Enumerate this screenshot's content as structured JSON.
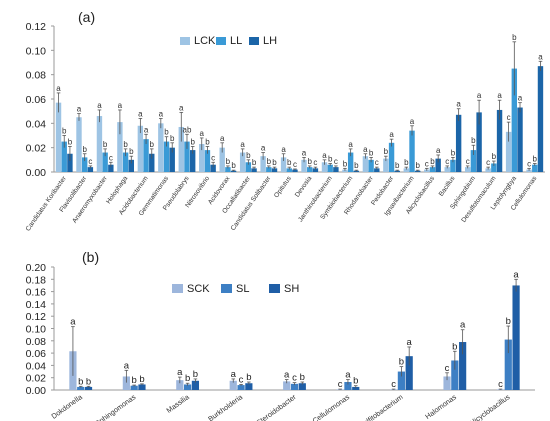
{
  "chart_data": [
    {
      "type": "bar",
      "panel_label": "(a)",
      "ylim": [
        0,
        0.12
      ],
      "yticks": [
        "0.00",
        "0.02",
        "0.04",
        "0.06",
        "0.08",
        "0.10",
        "0.12"
      ],
      "legend": {
        "placement": "top-left"
      },
      "colors": [
        "#9ec4e4",
        "#3a9ad6",
        "#1b65a8"
      ],
      "categories": [
        "Candidatus Koribacter",
        "Flavisolibacter",
        "Anaeromyxobacter",
        "Holophaga",
        "Acidobacterium",
        "Gemmatimonas",
        "Pseudolabrys",
        "Nitrosovibrio",
        "Acidovorax",
        "Occallatibacter",
        "Candidatus Solibacter",
        "Opitutus",
        "Devosia",
        "Janthinobacterium",
        "Symbiobacterium",
        "Rhodanobacter",
        "Pedobacter",
        "Ignavibacterium",
        "Alicyclobacillus",
        "Bacillus",
        "Sphingobium",
        "Desulfotomaculum",
        "Leptolyngbya",
        "Cellulomonas"
      ],
      "series": [
        {
          "name": "LCK",
          "values": [
            0.057,
            0.045,
            0.046,
            0.041,
            0.038,
            0.04,
            0.037,
            0.023,
            0.02,
            0.016,
            0.013,
            0.012,
            0.01,
            0.008,
            0.002,
            0.013,
            0.011,
            0.003,
            0.002,
            0.004,
            0.004,
            0.003,
            0.033,
            0.002
          ]
        },
        {
          "name": "LL",
          "values": [
            0.025,
            0.012,
            0.016,
            0.016,
            0.027,
            0.025,
            0.025,
            0.018,
            0.004,
            0.008,
            0.004,
            0.003,
            0.004,
            0.006,
            0.016,
            0.01,
            0.024,
            0.034,
            0.004,
            0.01,
            0.018,
            0.007,
            0.085,
            0.006
          ]
        },
        {
          "name": "LH",
          "values": [
            0.015,
            0.004,
            0.006,
            0.01,
            0.015,
            0.02,
            0.018,
            0.006,
            0.001,
            0.003,
            0.003,
            0.002,
            0.003,
            0.004,
            0.001,
            0.003,
            0.001,
            0.001,
            0.011,
            0.047,
            0.049,
            0.051,
            0.053,
            0.087
          ]
        }
      ],
      "errors": [
        [
          0.008,
          0.003,
          0.005,
          0.01,
          0.006,
          0.004,
          0.012,
          0.005,
          0.004,
          0.003,
          0.003,
          0.003,
          0.002,
          0.002,
          0.001,
          0.002,
          0.002,
          0.001,
          0.001,
          0.001,
          0.001,
          0.001,
          0.008,
          0.001
        ],
        [
          0.005,
          0.003,
          0.003,
          0.003,
          0.004,
          0.004,
          0.006,
          0.003,
          0.001,
          0.002,
          0.001,
          0.001,
          0.001,
          0.001,
          0.003,
          0.002,
          0.003,
          0.004,
          0.001,
          0.002,
          0.004,
          0.002,
          0.022,
          0.001
        ],
        [
          0.006,
          0.001,
          0.002,
          0.003,
          0.004,
          0.004,
          0.003,
          0.002,
          0.0005,
          0.001,
          0.001,
          0.0005,
          0.001,
          0.001,
          0.0005,
          0.001,
          0.0005,
          0.0005,
          0.003,
          0.005,
          0.01,
          0.008,
          0.004,
          0.004
        ]
      ],
      "letters": [
        [
          "a",
          "b",
          "b"
        ],
        [
          "a",
          "b",
          "c"
        ],
        [
          "a",
          "b",
          "c"
        ],
        [
          "a",
          "b",
          "b"
        ],
        [
          "a",
          "a",
          "b"
        ],
        [
          "a",
          "b",
          "b"
        ],
        [
          "a",
          "ab",
          "b"
        ],
        [
          "a",
          "b",
          "c"
        ],
        [
          "a",
          "b",
          "b"
        ],
        [
          "a",
          "b",
          "b"
        ],
        [
          "a",
          "b",
          "b"
        ],
        [
          "a",
          "b",
          "c"
        ],
        [
          "a",
          "b",
          "c"
        ],
        [
          "a",
          "b",
          "c"
        ],
        [
          "b",
          "a",
          "b"
        ],
        [
          "a",
          "b",
          "c"
        ],
        [
          "b",
          "a",
          "b"
        ],
        [
          "b",
          "a",
          "b"
        ],
        [
          "c",
          "b",
          "a"
        ],
        [
          "c",
          "b",
          "a"
        ],
        [
          "c",
          "b",
          "a"
        ],
        [
          "c",
          "b",
          "a"
        ],
        [
          "c",
          "b",
          "a"
        ],
        [
          "c",
          "b",
          "a"
        ]
      ]
    },
    {
      "type": "bar",
      "panel_label": "(b)",
      "ylim": [
        0,
        0.2
      ],
      "yticks": [
        "0.00",
        "0.02",
        "0.04",
        "0.06",
        "0.08",
        "0.10",
        "0.12",
        "0.14",
        "0.16",
        "0.18",
        "0.20"
      ],
      "legend": {
        "placement": "top-left"
      },
      "colors": [
        "#9db6dc",
        "#3d7fc4",
        "#1f5ea6"
      ],
      "categories": [
        "Dokdonella",
        "Sphingomonas",
        "Massilia",
        "Burkholderia",
        "Steroidobacter",
        "Cellulomonas",
        "Desulfitobacterium",
        "Halomonas",
        "Alicyclobacillus"
      ],
      "series": [
        {
          "name": "SCK",
          "values": [
            0.063,
            0.022,
            0.016,
            0.015,
            0.014,
            0.001,
            0.001,
            0.022,
            0.001
          ]
        },
        {
          "name": "SL",
          "values": [
            0.005,
            0.007,
            0.009,
            0.008,
            0.01,
            0.013,
            0.03,
            0.048,
            0.082
          ]
        },
        {
          "name": "SH",
          "values": [
            0.005,
            0.009,
            0.015,
            0.011,
            0.011,
            0.005,
            0.055,
            0.078,
            0.17
          ]
        }
      ],
      "errors": [
        [
          0.04,
          0.01,
          0.005,
          0.003,
          0.003,
          0.0005,
          0.0005,
          0.006,
          0.0005
        ],
        [
          0.001,
          0.001,
          0.002,
          0.001,
          0.002,
          0.004,
          0.008,
          0.015,
          0.022
        ],
        [
          0.001,
          0.001,
          0.003,
          0.002,
          0.002,
          0.002,
          0.015,
          0.02,
          0.01
        ]
      ],
      "letters": [
        [
          "a",
          "b",
          "b"
        ],
        [
          "a",
          "b",
          "b"
        ],
        [
          "a",
          "b",
          "b"
        ],
        [
          "a",
          "c",
          "b"
        ],
        [
          "a",
          "c",
          "b"
        ],
        [
          "c",
          "a",
          "b"
        ],
        [
          "c",
          "b",
          "a"
        ],
        [
          "c",
          "b",
          "a"
        ],
        [
          "c",
          "b",
          "a"
        ]
      ]
    }
  ]
}
